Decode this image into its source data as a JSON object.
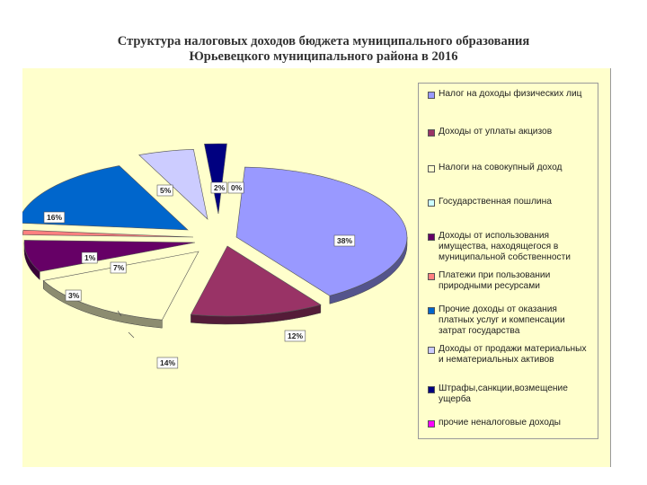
{
  "title": {
    "line1": "Структура налоговых доходов бюджета муниципального образования",
    "line2": "Юрьевецкого муниципального  района в 2016"
  },
  "chart_data": {
    "type": "pie",
    "title": "Структура налоговых доходов бюджета муниципального образования Юрьевецкого муниципального  района в 2016",
    "legend_position": "right",
    "series": [
      {
        "name": "Налог на доходы физических лиц",
        "value": 38,
        "label": "38%",
        "color": "#9999FF"
      },
      {
        "name": "Доходы от уплаты акцизов",
        "value": 12,
        "label": "12%",
        "color": "#993366"
      },
      {
        "name": "Налоги на совокупный доход",
        "value": 14,
        "label": "14%",
        "color": "#FFFFCC"
      },
      {
        "name": "Государственная пошлина",
        "value": 0,
        "label": "",
        "color": "#CCFFFF"
      },
      {
        "name": "Доходы от использования имущества, находящегося в муниципальной собственности",
        "value": 7,
        "label": "7%",
        "color": "#660066"
      },
      {
        "name": "Платежи при пользовании природными ресурсами",
        "value": 1,
        "label": "1%",
        "color": "#FF8080"
      },
      {
        "name": "Прочие доходы от оказания платных услуг и компенсации затрат государства",
        "value": 16,
        "label": "16%",
        "color": "#0066CC"
      },
      {
        "name": "Доходы от продажи материальных и нематериальных активов",
        "value": 5,
        "label": "5%",
        "color": "#CCCCFF"
      },
      {
        "name": "Штрафы,санкции,возмещение ущерба",
        "value": 2,
        "label": "2%",
        "color": "#000080"
      },
      {
        "name": "прочие неналоговые доходы",
        "value": 0,
        "label": "0%",
        "color": "#FF00FF"
      }
    ],
    "extra_labels": [
      "3%"
    ]
  }
}
